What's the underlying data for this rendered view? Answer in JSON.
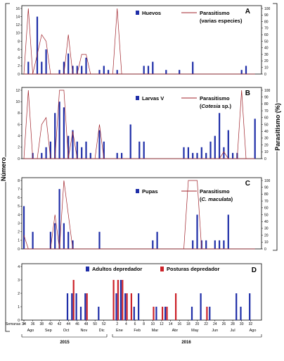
{
  "figure": {
    "y_label_left": "Número",
    "y_label_right": "Parasitismo (%)",
    "week_axis_label": "Semanas",
    "week_ticks": [
      34,
      36,
      38,
      40,
      42,
      44,
      46,
      48,
      50,
      52,
      2,
      4,
      6,
      8,
      10,
      12,
      14,
      16,
      18,
      20,
      22,
      24,
      26,
      28,
      30,
      32,
      34
    ],
    "months": [
      "Ago",
      "Sep",
      "Oct",
      "Nov",
      "Dic",
      "Ene",
      "Feb",
      "Mar",
      "Abr",
      "May",
      "Jun",
      "Jul",
      "Ago"
    ],
    "years": [
      "2015",
      "2016"
    ],
    "colors": {
      "blue": "#1f2ea8",
      "red": "#cc2229",
      "line": "#a0232b"
    }
  },
  "chart_data": [
    {
      "type": "bar",
      "panel": "A",
      "series": [
        {
          "name": "Huevos",
          "kind": "bar",
          "x": [
            35,
            37,
            38,
            39,
            42,
            43,
            44,
            45,
            46,
            47,
            48,
            51,
            52,
            53,
            2,
            8,
            9,
            10,
            13,
            16,
            19,
            30,
            31
          ],
          "values": [
            3,
            14,
            3,
            6,
            1,
            3,
            5,
            2,
            2,
            2,
            4,
            1,
            2,
            1,
            1,
            2,
            2,
            3,
            1,
            1,
            3,
            1,
            2
          ]
        },
        {
          "name": "Parasitismo (varias especies)",
          "kind": "line",
          "axis": "right",
          "x": [
            34,
            35,
            36,
            37,
            38,
            39,
            40,
            41,
            42,
            43,
            44,
            45,
            46,
            47,
            48,
            49,
            50,
            51,
            52,
            53,
            1,
            2,
            3,
            4,
            5,
            6,
            7,
            8,
            9,
            10,
            11,
            12,
            13,
            14,
            15,
            16,
            17,
            18,
            19,
            20,
            21,
            22,
            23,
            24,
            25,
            26,
            27,
            28,
            29,
            30,
            31,
            32,
            33,
            34
          ],
          "values": [
            0,
            100,
            0,
            30,
            60,
            50,
            0,
            0,
            0,
            0,
            60,
            0,
            0,
            30,
            30,
            0,
            0,
            0,
            0,
            0,
            0,
            100,
            0,
            0,
            0,
            0,
            0,
            0,
            0,
            0,
            0,
            0,
            0,
            0,
            0,
            0,
            0,
            0,
            0,
            0,
            0,
            0,
            0,
            0,
            0,
            0,
            0,
            0,
            0,
            0,
            0,
            0,
            0,
            0
          ]
        }
      ],
      "ylim": [
        0,
        16
      ],
      "yticks": [
        0,
        2,
        4,
        6,
        8,
        10,
        12,
        14,
        16
      ],
      "y2lim": [
        0,
        100
      ],
      "y2ticks": [
        0,
        10,
        20,
        30,
        40,
        50,
        60,
        70,
        80,
        90,
        100
      ]
    },
    {
      "type": "bar",
      "panel": "B",
      "series": [
        {
          "name": "Larvas V",
          "kind": "bar",
          "x": [
            36,
            38,
            39,
            40,
            41,
            42,
            43,
            44,
            45,
            46,
            47,
            48,
            49,
            51,
            52,
            2,
            3,
            5,
            7,
            8,
            17,
            18,
            19,
            20,
            21,
            22,
            23,
            24,
            25,
            26,
            27,
            28,
            29,
            33
          ],
          "values": [
            1,
            1,
            2,
            3,
            8,
            10,
            9,
            4,
            5,
            3,
            2,
            3,
            1,
            5,
            3,
            1,
            1,
            6,
            3,
            3,
            2,
            2,
            1,
            1,
            2,
            1,
            3,
            4,
            8,
            2,
            5,
            1,
            1,
            7
          ]
        },
        {
          "name": "Parasitismo (Cotesia sp.)",
          "kind": "line",
          "axis": "right",
          "x": [
            34,
            35,
            36,
            37,
            38,
            39,
            40,
            41,
            42,
            43,
            44,
            45,
            46,
            47,
            48,
            49,
            50,
            51,
            52,
            53,
            1,
            2,
            3,
            4,
            5,
            6,
            7,
            8,
            9,
            10,
            11,
            12,
            13,
            14,
            15,
            16,
            17,
            18,
            19,
            20,
            21,
            22,
            23,
            24,
            25,
            26,
            27,
            28,
            29,
            30,
            31,
            32,
            33,
            34
          ],
          "values": [
            0,
            100,
            0,
            0,
            50,
            60,
            0,
            0,
            100,
            100,
            0,
            40,
            0,
            0,
            0,
            0,
            0,
            50,
            0,
            0,
            0,
            0,
            0,
            0,
            0,
            0,
            0,
            0,
            0,
            0,
            0,
            0,
            0,
            0,
            0,
            0,
            0,
            0,
            0,
            0,
            0,
            0,
            0,
            0,
            0,
            10,
            0,
            0,
            0,
            100,
            0,
            0,
            0,
            0
          ]
        }
      ],
      "ylim": [
        0,
        12
      ],
      "yticks": [
        0,
        2,
        4,
        6,
        8,
        10,
        12
      ],
      "y2lim": [
        0,
        100
      ],
      "y2ticks": [
        0,
        10,
        20,
        30,
        40,
        50,
        60,
        70,
        80,
        90,
        100
      ]
    },
    {
      "type": "bar",
      "panel": "C",
      "series": [
        {
          "name": "Pupas",
          "kind": "bar",
          "x": [
            34,
            36,
            40,
            41,
            42,
            43,
            44,
            45,
            51,
            10,
            11,
            19,
            20,
            21,
            22,
            24,
            25,
            26,
            27
          ],
          "values": [
            5,
            2,
            2,
            3,
            7,
            3,
            2,
            1,
            2,
            1,
            2,
            1,
            4,
            1,
            1,
            1,
            1,
            1,
            4
          ]
        },
        {
          "name": "Parasitismo (C. maculata)",
          "kind": "line",
          "axis": "right",
          "x": [
            34,
            35,
            36,
            37,
            38,
            39,
            40,
            41,
            42,
            43,
            44,
            45,
            46,
            47,
            48,
            49,
            50,
            51,
            52,
            53,
            1,
            2,
            3,
            4,
            5,
            6,
            7,
            8,
            9,
            10,
            11,
            12,
            13,
            14,
            15,
            16,
            17,
            18,
            19,
            20,
            21,
            22,
            23,
            24,
            25,
            26,
            27,
            28,
            29,
            30,
            31,
            32,
            33,
            34
          ],
          "values": [
            20,
            0,
            0,
            0,
            0,
            0,
            0,
            50,
            0,
            100,
            50,
            0,
            0,
            0,
            0,
            0,
            0,
            0,
            0,
            0,
            0,
            0,
            0,
            0,
            0,
            0,
            0,
            0,
            0,
            0,
            0,
            0,
            0,
            0,
            0,
            0,
            0,
            100,
            100,
            100,
            0,
            0,
            0,
            0,
            0,
            0,
            0,
            0,
            0,
            0,
            0,
            0,
            0,
            0
          ]
        }
      ],
      "ylim": [
        0,
        8
      ],
      "yticks": [
        0,
        1,
        2,
        3,
        4,
        5,
        6,
        7,
        8
      ],
      "y2lim": [
        0,
        100
      ],
      "y2ticks": [
        0,
        10,
        20,
        30,
        40,
        50,
        60,
        70,
        80,
        90,
        100
      ]
    },
    {
      "type": "bar",
      "panel": "D",
      "series": [
        {
          "name": "Adultos depredador",
          "kind": "bar",
          "x": [
            44,
            45,
            46,
            47,
            48,
            51,
            2,
            3,
            4,
            6,
            7,
            11,
            13,
            19,
            21,
            23,
            29,
            30,
            32
          ],
          "values": [
            2,
            2,
            2,
            1,
            2,
            1,
            2,
            3,
            2,
            1,
            2,
            1,
            1,
            1,
            2,
            1,
            2,
            1,
            2
          ]
        },
        {
          "name": "Posturas depredador",
          "kind": "bar",
          "x": [
            45,
            48,
            1,
            2,
            3,
            4,
            5,
            10,
            12,
            13,
            15,
            22
          ],
          "values": [
            3,
            2,
            3,
            3,
            3,
            2,
            2,
            1,
            1,
            1,
            2,
            1
          ]
        }
      ],
      "ylim": [
        0,
        4
      ],
      "yticks": [
        0,
        1,
        2,
        3,
        4
      ]
    }
  ]
}
